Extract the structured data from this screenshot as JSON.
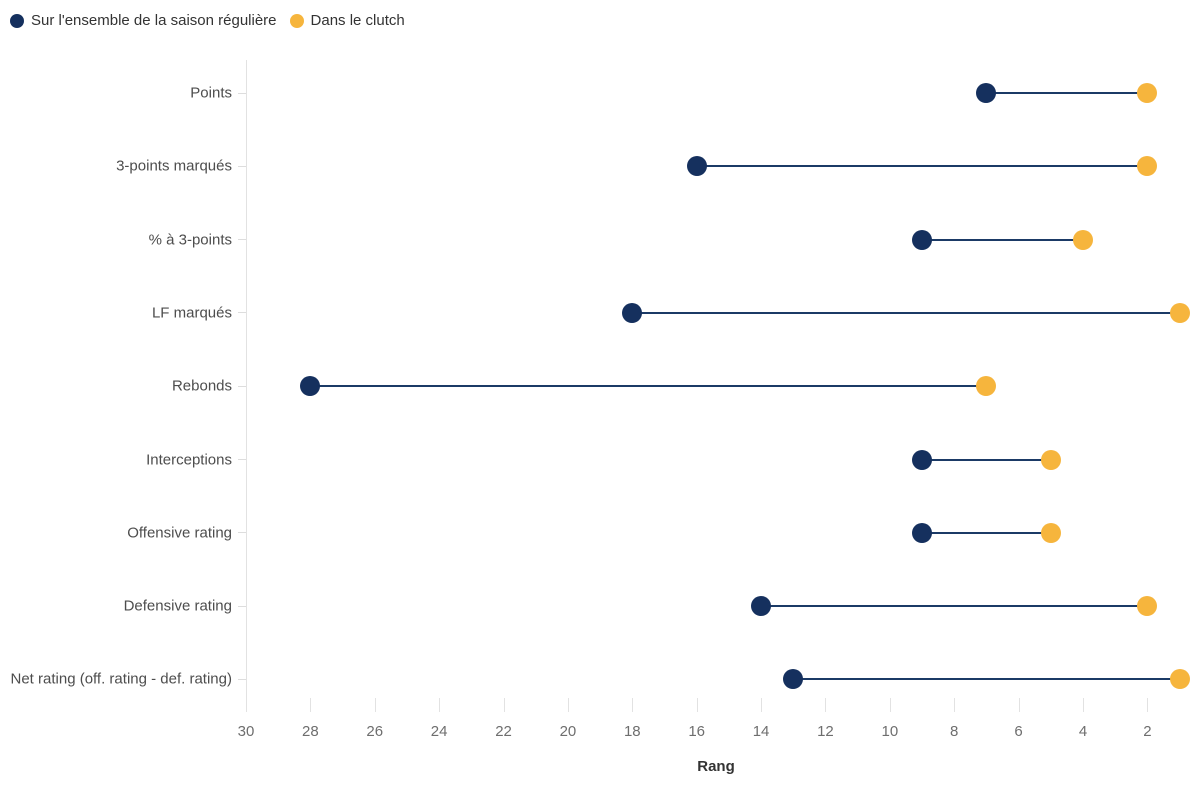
{
  "chart_data": {
    "type": "dumbbell",
    "title": "",
    "categories": [
      "Points",
      "3-points marqués",
      "% à 3-points",
      "LF marqués",
      "Rebonds",
      "Interceptions",
      "Offensive rating",
      "Defensive rating",
      "Net rating (off. rating - def. rating)"
    ],
    "series": [
      {
        "name": "Sur l'ensemble de la saison régulière",
        "color": "#15305e",
        "values": [
          7,
          16,
          9,
          18,
          28,
          9,
          9,
          14,
          13
        ]
      },
      {
        "name": "Dans le clutch",
        "color": "#f6b53d",
        "values": [
          2,
          2,
          4,
          1,
          7,
          5,
          5,
          2,
          1
        ]
      }
    ],
    "xlabel": "Rang",
    "xticks": [
      30,
      28,
      26,
      24,
      22,
      20,
      18,
      16,
      14,
      12,
      10,
      8,
      6,
      4,
      2
    ],
    "xlim": [
      30,
      0.8
    ],
    "x_reversed": true,
    "grid": "off",
    "legend_position": "top-left",
    "connector_color": "#1b3a66",
    "axis_color": "#e2e2e2",
    "tick_color": "#dddddd",
    "label_color": "#4d4d4d",
    "tick_label_color": "#6e6e6e",
    "background": "#ffffff"
  }
}
